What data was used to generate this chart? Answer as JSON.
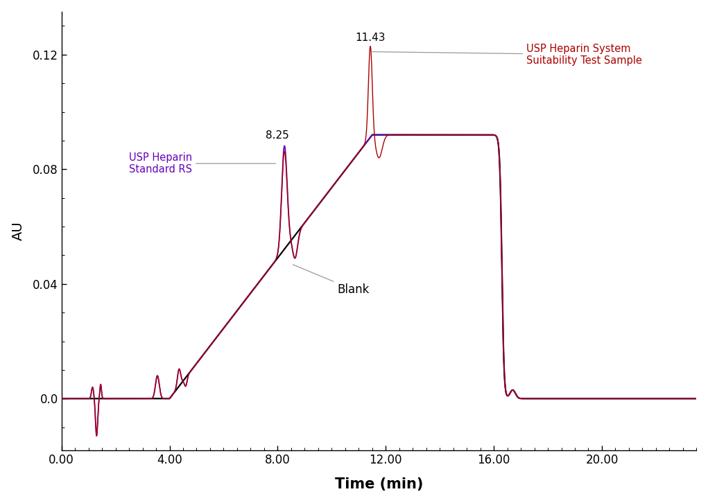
{
  "title": "",
  "xlabel": "Time (min)",
  "ylabel": "AU",
  "xlim": [
    0,
    23.5
  ],
  "ylim": [
    -0.018,
    0.135
  ],
  "xticks": [
    0.0,
    4.0,
    8.0,
    12.0,
    16.0,
    20.0
  ],
  "xtick_labels": [
    "0.00",
    "4.00",
    "8.00",
    "12.00",
    "16.00",
    "20.00"
  ],
  "yticks": [
    0.0,
    0.04,
    0.08,
    0.12
  ],
  "ytick_labels": [
    "0.0",
    "0.04",
    "0.08",
    "0.12"
  ],
  "color_standard": "#6600bb",
  "color_system": "#aa0000",
  "color_blank": "#000000",
  "peak1_label": "8.25",
  "peak2_label": "11.43",
  "label_standard": "USP Heparin\nStandard RS",
  "label_system": "USP Heparin System\nSuitability Test Sample",
  "label_blank": "Blank",
  "background_color": "#ffffff"
}
